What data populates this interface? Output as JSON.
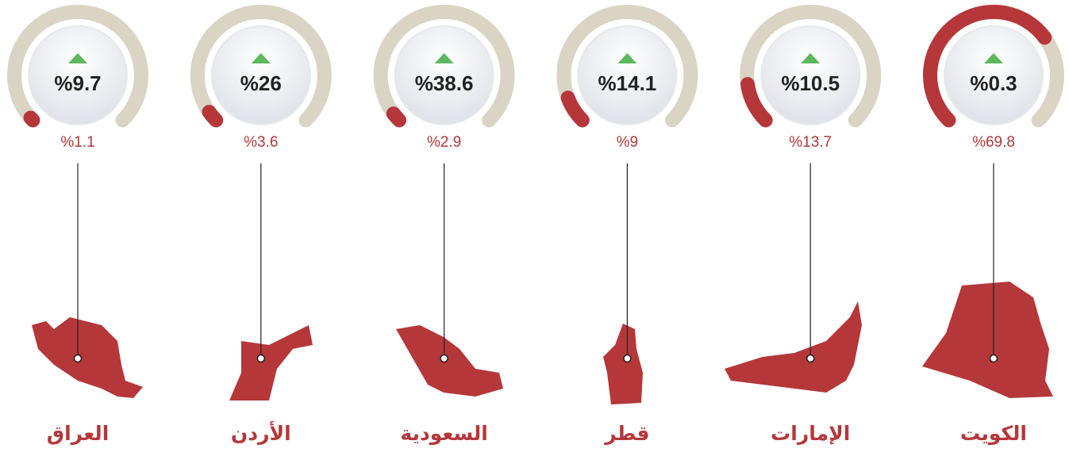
{
  "chart_data": {
    "type": "gauge",
    "categories": [
      "العراق",
      "الأردن",
      "السعودية",
      "قطر",
      "الإمارات",
      "الكويت"
    ],
    "values": [
      1.1,
      3.6,
      2.9,
      9,
      13.7,
      69.8
    ],
    "value_labels": [
      "%1.1",
      "%3.6",
      "%2.9",
      "%9",
      "%13.7",
      "%69.8"
    ],
    "growth": {
      "values": [
        9.7,
        26,
        38.6,
        14.1,
        10.5,
        0.3
      ],
      "value_labels": [
        "%9.7",
        "%26",
        "%38.6",
        "%14.1",
        "%10.5",
        "%0.3"
      ]
    },
    "ylim": [
      0,
      100
    ],
    "color": "#b5373a",
    "track_color": "#d9d4c4",
    "up_color": "#5cb85c"
  }
}
